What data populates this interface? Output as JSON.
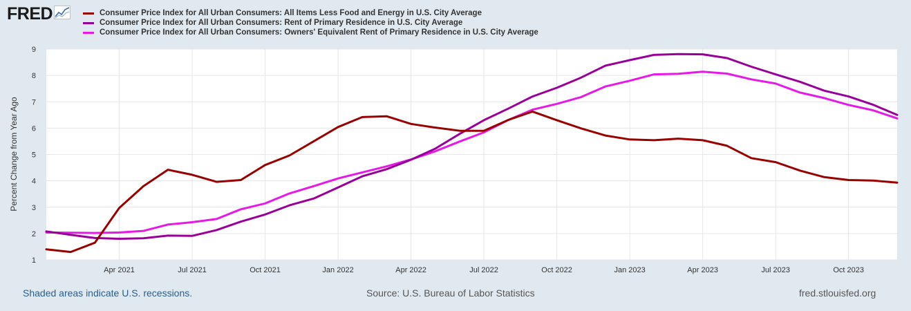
{
  "logo": {
    "text": "FRED",
    "icon": "chart-line-icon"
  },
  "chart_data": {
    "type": "line",
    "title": "",
    "xlabel": "",
    "ylabel": "Percent Change from Year Ago",
    "ylim": [
      1,
      9
    ],
    "yticks": [
      "1",
      "2",
      "3",
      "4",
      "5",
      "6",
      "7",
      "8",
      "9"
    ],
    "x_tick_labels": [
      "Apr 2021",
      "Jul 2021",
      "Oct 2021",
      "Jan 2022",
      "Apr 2022",
      "Jul 2022",
      "Oct 2022",
      "Jan 2023",
      "Apr 2023",
      "Jul 2023",
      "Oct 2023"
    ],
    "x_tick_month_index": [
      3,
      6,
      9,
      12,
      15,
      18,
      21,
      24,
      27,
      30,
      33
    ],
    "x_range_months": [
      0,
      35
    ],
    "x_note": "monthly observations Jan 2021 - Dec 2023 (index 0 = Jan 2021)",
    "grid": true,
    "legend_position": "top",
    "series": [
      {
        "name": "Consumer Price Index for All Urban Consumers: All Items Less Food and Energy in U.S. City Average",
        "color": "#990000",
        "values": [
          1.4,
          1.3,
          1.65,
          2.97,
          3.8,
          4.42,
          4.23,
          3.96,
          4.03,
          4.6,
          4.96,
          5.5,
          6.04,
          6.42,
          6.45,
          6.16,
          6.02,
          5.9,
          5.9,
          6.31,
          6.63,
          6.3,
          5.99,
          5.72,
          5.57,
          5.54,
          5.6,
          5.54,
          5.33,
          4.86,
          4.71,
          4.39,
          4.14,
          4.03,
          4.01,
          3.93
        ]
      },
      {
        "name": "Consumer Price Index for All Urban Consumers: Rent of Primary Residence in U.S. City Average",
        "color": "#990099",
        "values": [
          2.08,
          1.95,
          1.83,
          1.8,
          1.82,
          1.92,
          1.91,
          2.13,
          2.45,
          2.72,
          3.07,
          3.33,
          3.75,
          4.17,
          4.44,
          4.8,
          5.22,
          5.78,
          6.3,
          6.74,
          7.2,
          7.53,
          7.92,
          8.37,
          8.58,
          8.78,
          8.81,
          8.8,
          8.66,
          8.33,
          8.04,
          7.76,
          7.42,
          7.2,
          6.89,
          6.5
        ]
      },
      {
        "name": "Consumer Price Index for All Urban Consumers: Owners' Equivalent Rent of Primary Residence in U.S. City Average",
        "color": "#e619e6",
        "values": [
          2.04,
          2.03,
          2.02,
          2.04,
          2.1,
          2.34,
          2.43,
          2.55,
          2.92,
          3.14,
          3.52,
          3.8,
          4.09,
          4.32,
          4.55,
          4.81,
          5.12,
          5.49,
          5.84,
          6.31,
          6.7,
          6.92,
          7.18,
          7.58,
          7.8,
          8.04,
          8.06,
          8.14,
          8.07,
          7.85,
          7.69,
          7.35,
          7.14,
          6.88,
          6.68,
          6.37
        ]
      }
    ]
  },
  "footer": {
    "recessions_note": "Shaded areas indicate U.S. recessions.",
    "source": "Source: U.S. Bureau of Labor Statistics",
    "site": "fred.stlouisfed.org"
  }
}
